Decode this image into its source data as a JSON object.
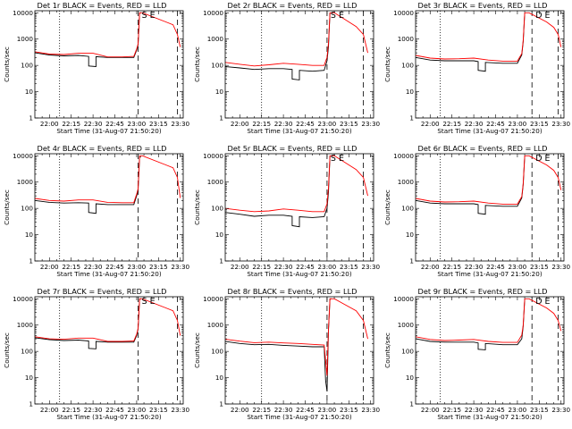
{
  "figure": {
    "xlabel": "Start Time (31-Aug-07 21:50:20)",
    "ylabel": "Counts/sec",
    "x_tick_labels": [
      "22:00",
      "22:15",
      "22:30",
      "22:45",
      "23:00",
      "23:15",
      "23:30"
    ],
    "y_tick_labels": [
      "1",
      "10",
      "100",
      "1000",
      "10000"
    ],
    "colors": {
      "events": "#000000",
      "lld": "#ff0000"
    }
  },
  "chart_data": [
    {
      "type": "line",
      "title": "Det 1r BLACK = Events, RED = LLD",
      "marker_text": "S E",
      "scale": "log",
      "xlim": [
        "21:50",
        "23:32"
      ],
      "ylim": [
        1,
        12000
      ],
      "dotted_lines": [
        "22:07"
      ],
      "dashed_lines": [
        "23:01",
        "23:28"
      ],
      "series": [
        {
          "name": "Events",
          "x": [
            "21:50",
            "22:00",
            "22:10",
            "22:20",
            "22:27",
            "22:27",
            "22:32",
            "22:32",
            "22:40",
            "22:50",
            "22:58",
            "23:00",
            "23:01",
            "23:02",
            "23:03"
          ],
          "y": [
            300,
            250,
            230,
            240,
            220,
            95,
            90,
            215,
            200,
            200,
            200,
            380,
            600,
            10000,
            10000
          ]
        },
        {
          "name": "LLD",
          "x": [
            "21:50",
            "22:00",
            "22:10",
            "22:20",
            "22:30",
            "22:40",
            "22:50",
            "22:58",
            "23:00",
            "23:01",
            "23:02",
            "23:04",
            "23:20",
            "23:25",
            "23:28",
            "23:30"
          ],
          "y": [
            330,
            270,
            260,
            290,
            290,
            210,
            210,
            220,
            420,
            650,
            10000,
            10000,
            4500,
            3500,
            1500,
            500
          ]
        }
      ]
    },
    {
      "type": "line",
      "title": "Det 2r BLACK = Events, RED = LLD",
      "marker_text": "S E",
      "scale": "log",
      "xlim": [
        "21:50",
        "23:32"
      ],
      "ylim": [
        1,
        12000
      ],
      "dotted_lines": [
        "22:15"
      ],
      "dashed_lines": [
        "23:00",
        "23:25"
      ],
      "series": [
        {
          "name": "Events",
          "x": [
            "21:50",
            "22:00",
            "22:10",
            "22:20",
            "22:30",
            "22:36",
            "22:36",
            "22:41",
            "22:41",
            "22:50",
            "22:58",
            "23:00",
            "23:01",
            "23:02"
          ],
          "y": [
            90,
            80,
            70,
            75,
            75,
            70,
            30,
            28,
            65,
            60,
            65,
            150,
            500,
            10000
          ]
        },
        {
          "name": "LLD",
          "x": [
            "21:50",
            "22:00",
            "22:10",
            "22:20",
            "22:30",
            "22:40",
            "22:50",
            "22:58",
            "23:00",
            "23:01",
            "23:02",
            "23:05",
            "23:20",
            "23:25",
            "23:28"
          ],
          "y": [
            130,
            110,
            95,
            105,
            120,
            110,
            100,
            100,
            200,
            700,
            10000,
            10000,
            3000,
            1500,
            300
          ]
        }
      ]
    },
    {
      "type": "line",
      "title": "Det 3r BLACK = Events, RED = LLD",
      "marker_text": "D E",
      "scale": "log",
      "xlim": [
        "21:50",
        "23:32"
      ],
      "ylim": [
        1,
        12000
      ],
      "dotted_lines": [
        "22:07"
      ],
      "dashed_lines": [
        "23:10",
        "23:28"
      ],
      "series": [
        {
          "name": "Events",
          "x": [
            "21:50",
            "22:00",
            "22:10",
            "22:20",
            "22:30",
            "22:33",
            "22:33",
            "22:38",
            "22:38",
            "22:50",
            "23:00",
            "23:03",
            "23:04",
            "23:05"
          ],
          "y": [
            200,
            160,
            150,
            150,
            150,
            140,
            65,
            60,
            130,
            120,
            120,
            250,
            800,
            10000
          ]
        },
        {
          "name": "LLD",
          "x": [
            "21:50",
            "22:00",
            "22:10",
            "22:20",
            "22:30",
            "22:40",
            "22:50",
            "23:00",
            "23:03",
            "23:04",
            "23:05",
            "23:08",
            "23:20",
            "23:25",
            "23:28",
            "23:30"
          ],
          "y": [
            240,
            190,
            175,
            180,
            190,
            160,
            145,
            145,
            280,
            900,
            10000,
            10000,
            4500,
            2800,
            1500,
            500
          ]
        }
      ]
    },
    {
      "type": "line",
      "title": "Det 4r BLACK = Events, RED = LLD",
      "marker_text": "",
      "scale": "log",
      "xlim": [
        "21:50",
        "23:32"
      ],
      "ylim": [
        1,
        12000
      ],
      "dotted_lines": [
        "22:07"
      ],
      "dashed_lines": [
        "23:01",
        "23:28"
      ],
      "series": [
        {
          "name": "Events",
          "x": [
            "21:50",
            "22:00",
            "22:10",
            "22:20",
            "22:27",
            "22:27",
            "22:32",
            "22:32",
            "22:40",
            "22:50",
            "22:58",
            "23:00",
            "23:01",
            "23:02",
            "23:03"
          ],
          "y": [
            200,
            170,
            160,
            165,
            160,
            70,
            65,
            150,
            140,
            140,
            140,
            300,
            500,
            9000,
            9000
          ]
        },
        {
          "name": "LLD",
          "x": [
            "21:50",
            "22:00",
            "22:10",
            "22:20",
            "22:30",
            "22:40",
            "22:50",
            "22:58",
            "23:00",
            "23:01",
            "23:02",
            "23:04",
            "23:20",
            "23:25",
            "23:28",
            "23:30"
          ],
          "y": [
            240,
            200,
            190,
            210,
            210,
            170,
            165,
            165,
            350,
            550,
            10000,
            10000,
            4500,
            3500,
            1500,
            250
          ]
        }
      ]
    },
    {
      "type": "line",
      "title": "Det 5r BLACK = Events, RED = LLD",
      "marker_text": "S E",
      "scale": "log",
      "xlim": [
        "21:50",
        "23:32"
      ],
      "ylim": [
        1,
        12000
      ],
      "dotted_lines": [
        "22:15"
      ],
      "dashed_lines": [
        "23:00",
        "23:25"
      ],
      "series": [
        {
          "name": "Events",
          "x": [
            "21:50",
            "22:00",
            "22:10",
            "22:20",
            "22:30",
            "22:36",
            "22:36",
            "22:41",
            "22:41",
            "22:50",
            "22:58",
            "23:00",
            "23:01",
            "23:02"
          ],
          "y": [
            70,
            60,
            50,
            55,
            55,
            50,
            22,
            20,
            48,
            45,
            48,
            100,
            400,
            10000
          ]
        },
        {
          "name": "LLD",
          "x": [
            "21:50",
            "22:00",
            "22:10",
            "22:20",
            "22:30",
            "22:40",
            "22:50",
            "22:58",
            "23:00",
            "23:01",
            "23:02",
            "23:05",
            "23:20",
            "23:25",
            "23:28"
          ],
          "y": [
            100,
            85,
            75,
            80,
            95,
            85,
            75,
            75,
            150,
            600,
            10000,
            10000,
            3000,
            1500,
            300
          ]
        }
      ]
    },
    {
      "type": "line",
      "title": "Det 6r BLACK = Events, RED = LLD",
      "marker_text": "D E",
      "scale": "log",
      "xlim": [
        "21:50",
        "23:32"
      ],
      "ylim": [
        1,
        12000
      ],
      "dotted_lines": [
        "22:07"
      ],
      "dashed_lines": [
        "23:10",
        "23:28"
      ],
      "series": [
        {
          "name": "Events",
          "x": [
            "21:50",
            "22:00",
            "22:10",
            "22:20",
            "22:30",
            "22:33",
            "22:33",
            "22:38",
            "22:38",
            "22:50",
            "23:00",
            "23:03",
            "23:04",
            "23:05"
          ],
          "y": [
            200,
            160,
            150,
            150,
            150,
            140,
            65,
            60,
            130,
            120,
            120,
            250,
            800,
            10000
          ]
        },
        {
          "name": "LLD",
          "x": [
            "21:50",
            "22:00",
            "22:10",
            "22:20",
            "22:30",
            "22:40",
            "22:50",
            "23:00",
            "23:03",
            "23:04",
            "23:05",
            "23:08",
            "23:20",
            "23:25",
            "23:28",
            "23:30"
          ],
          "y": [
            240,
            190,
            175,
            180,
            190,
            160,
            145,
            145,
            280,
            900,
            10000,
            10000,
            4500,
            2800,
            1500,
            500
          ]
        }
      ]
    },
    {
      "type": "line",
      "title": "Det 7r BLACK = Events, RED = LLD",
      "marker_text": "S E",
      "scale": "log",
      "xlim": [
        "21:50",
        "23:32"
      ],
      "ylim": [
        1,
        12000
      ],
      "dotted_lines": [
        "22:07"
      ],
      "dashed_lines": [
        "23:01",
        "23:28"
      ],
      "series": [
        {
          "name": "Events",
          "x": [
            "21:50",
            "22:00",
            "22:10",
            "22:20",
            "22:27",
            "22:27",
            "22:32",
            "22:32",
            "22:40",
            "22:50",
            "22:58",
            "23:00",
            "23:01",
            "23:02",
            "23:03"
          ],
          "y": [
            330,
            280,
            260,
            270,
            250,
            130,
            125,
            240,
            225,
            225,
            225,
            400,
            700,
            10000,
            10000
          ]
        },
        {
          "name": "LLD",
          "x": [
            "21:50",
            "22:00",
            "22:10",
            "22:20",
            "22:30",
            "22:40",
            "22:50",
            "22:58",
            "23:00",
            "23:01",
            "23:02",
            "23:04",
            "23:20",
            "23:25",
            "23:28",
            "23:30"
          ],
          "y": [
            360,
            300,
            290,
            320,
            320,
            240,
            240,
            250,
            450,
            750,
            10000,
            10000,
            4500,
            3500,
            1500,
            400
          ]
        }
      ]
    },
    {
      "type": "line",
      "title": "Det 8r BLACK = Events, RED = LLD",
      "marker_text": "",
      "scale": "log",
      "xlim": [
        "21:50",
        "23:32"
      ],
      "ylim": [
        1,
        12000
      ],
      "dotted_lines": [
        "22:15"
      ],
      "dashed_lines": [
        "23:00",
        "23:25"
      ],
      "series": [
        {
          "name": "Events",
          "x": [
            "21:50",
            "22:00",
            "22:10",
            "22:20",
            "22:30",
            "22:40",
            "22:50",
            "22:58",
            "22:59",
            "23:00",
            "23:01",
            "23:02",
            "23:03"
          ],
          "y": [
            240,
            200,
            180,
            185,
            170,
            160,
            150,
            150,
            8,
            3,
            600,
            10000,
            10000
          ]
        },
        {
          "name": "LLD",
          "x": [
            "21:50",
            "22:00",
            "22:10",
            "22:20",
            "22:30",
            "22:40",
            "22:50",
            "22:58",
            "23:00",
            "23:01",
            "23:02",
            "23:05",
            "23:20",
            "23:25",
            "23:28"
          ],
          "y": [
            290,
            245,
            215,
            225,
            210,
            200,
            185,
            175,
            12,
            700,
            10000,
            10000,
            3500,
            1500,
            300
          ]
        }
      ]
    },
    {
      "type": "line",
      "title": "Det 9r BLACK = Events, RED = LLD",
      "marker_text": "D E",
      "scale": "log",
      "xlim": [
        "21:50",
        "23:32"
      ],
      "ylim": [
        1,
        12000
      ],
      "dotted_lines": [
        "22:07"
      ],
      "dashed_lines": [
        "23:10",
        "23:28"
      ],
      "series": [
        {
          "name": "Events",
          "x": [
            "21:50",
            "22:00",
            "22:10",
            "22:20",
            "22:30",
            "22:33",
            "22:33",
            "22:38",
            "22:38",
            "22:50",
            "23:00",
            "23:03",
            "23:04",
            "23:05"
          ],
          "y": [
            300,
            240,
            225,
            225,
            225,
            210,
            120,
            115,
            200,
            180,
            180,
            300,
            900,
            10000
          ]
        },
        {
          "name": "LLD",
          "x": [
            "21:50",
            "22:00",
            "22:10",
            "22:20",
            "22:30",
            "22:40",
            "22:50",
            "23:00",
            "23:03",
            "23:04",
            "23:05",
            "23:08",
            "23:20",
            "23:25",
            "23:28",
            "23:30"
          ],
          "y": [
            360,
            285,
            260,
            270,
            285,
            240,
            220,
            220,
            420,
            1000,
            10000,
            10000,
            4500,
            2800,
            1500,
            600
          ]
        }
      ]
    }
  ]
}
